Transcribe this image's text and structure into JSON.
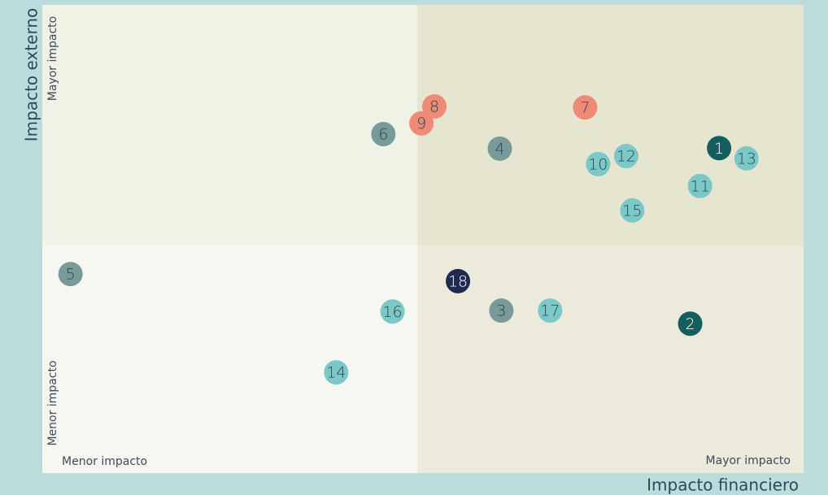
{
  "chart_data": {
    "type": "scatter",
    "x_label": "Impacto financiero",
    "y_label": "Impacto externo",
    "x_low_label": "Menor impacto",
    "x_high_label": "Mayor impacto",
    "y_low_label": "Menor impacto",
    "y_high_label": "Mayor impacto",
    "xlim": [
      0,
      100
    ],
    "ylim": [
      0,
      100
    ],
    "labels": [
      "1",
      "2",
      "3",
      "4",
      "5",
      "6",
      "7",
      "8",
      "9",
      "10",
      "11",
      "12",
      "13",
      "14",
      "15",
      "16",
      "17",
      "18"
    ],
    "x": [
      88.9,
      85.1,
      60.3,
      60.1,
      3.7,
      44.8,
      71.3,
      51.5,
      49.8,
      73.0,
      86.4,
      76.7,
      92.5,
      38.6,
      77.5,
      46.0,
      66.7,
      54.6
    ],
    "values": [
      69.4,
      31.9,
      34.7,
      69.3,
      42.5,
      72.4,
      78.1,
      78.3,
      74.7,
      66.0,
      61.3,
      67.7,
      67.2,
      21.5,
      56.1,
      34.5,
      34.7,
      41.0
    ],
    "colors": [
      "#155e5e",
      "#155e5e",
      "#7a9a9a",
      "#7a9a9a",
      "#7a9a9a",
      "#7a9a9a",
      "#ee8a76",
      "#ee8a76",
      "#ee8a76",
      "#7cc8c8",
      "#7cc8c8",
      "#7cc8c8",
      "#7cc8c8",
      "#7cc8c8",
      "#7cc8c8",
      "#7cc8c8",
      "#7cc8c8",
      "#1e2a50"
    ]
  }
}
